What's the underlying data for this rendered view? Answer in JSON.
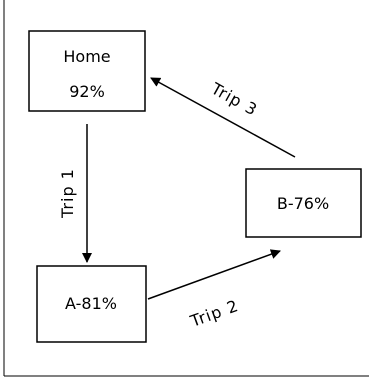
{
  "diagram": {
    "nodes": {
      "home": {
        "line1": "Home",
        "line2": "92%"
      },
      "a": {
        "label": "A-81%"
      },
      "b": {
        "label": "B-76%"
      }
    },
    "edges": {
      "trip1": {
        "label": "Trip 1",
        "from": "Home",
        "to": "A-81%"
      },
      "trip2": {
        "label": "Trip 2",
        "from": "A-81%",
        "to": "B-76%"
      },
      "trip3": {
        "label": "Trip 3",
        "from": "B-76%",
        "to": "Home"
      }
    }
  }
}
